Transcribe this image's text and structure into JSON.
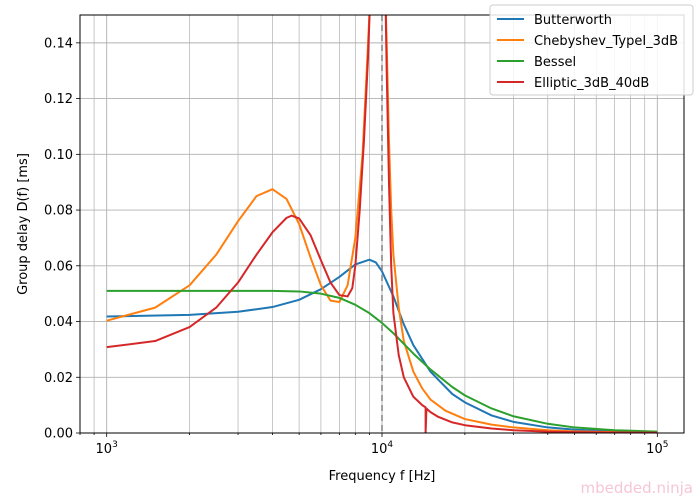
{
  "chart_data": {
    "type": "line",
    "xscale": "log",
    "xlim": [
      800,
      125000
    ],
    "ylim": [
      0.0,
      0.15
    ],
    "xlabel": "Frequency f [Hz]",
    "ylabel": "Group delay D(f) [ms]",
    "x_ticks": [
      {
        "value": 1000,
        "base": "10",
        "exp": "3"
      },
      {
        "value": 10000,
        "base": "10",
        "exp": "4"
      },
      {
        "value": 100000,
        "base": "10",
        "exp": "5"
      }
    ],
    "y_ticks": [
      "0.00",
      "0.02",
      "0.04",
      "0.06",
      "0.08",
      "0.10",
      "0.12",
      "0.14"
    ],
    "grid": true,
    "cutoff_line": {
      "x": 10000,
      "style": "dashed",
      "color": "#808080"
    },
    "legend_position": "top-right",
    "series": [
      {
        "name": "Butterworth",
        "color": "#1f77b4",
        "x": [
          1000,
          2000,
          3000,
          4000,
          5000,
          6000,
          7000,
          8000,
          9000,
          9500,
          10000,
          11000,
          12000,
          13000,
          15000,
          18000,
          20000,
          25000,
          30000,
          40000,
          50000,
          70000,
          100000
        ],
        "y": [
          0.0418,
          0.0424,
          0.0435,
          0.0452,
          0.0478,
          0.0516,
          0.056,
          0.0605,
          0.0622,
          0.0612,
          0.058,
          0.049,
          0.039,
          0.0315,
          0.022,
          0.014,
          0.011,
          0.0063,
          0.004,
          0.002,
          0.0012,
          0.0006,
          0.0003
        ]
      },
      {
        "name": "Chebyshev_TypeI_3dB",
        "color": "#ff7f0e",
        "x": [
          1000,
          1500,
          2000,
          2500,
          3000,
          3500,
          4000,
          4500,
          5000,
          5500,
          6000,
          6500,
          7000,
          7500,
          8000,
          8500,
          8800,
          9000,
          9050,
          10300,
          10400,
          10600,
          10800,
          11000,
          11500,
          12000,
          13000,
          14000,
          15000,
          17000,
          20000,
          25000,
          30000,
          40000,
          50000,
          70000,
          100000
        ],
        "y": [
          0.0403,
          0.045,
          0.053,
          0.064,
          0.076,
          0.085,
          0.0875,
          0.084,
          0.075,
          0.063,
          0.053,
          0.0475,
          0.047,
          0.053,
          0.07,
          0.1,
          0.13,
          0.15,
          0.155,
          0.155,
          0.14,
          0.105,
          0.08,
          0.064,
          0.045,
          0.033,
          0.022,
          0.016,
          0.012,
          0.008,
          0.005,
          0.003,
          0.002,
          0.001,
          0.0006,
          0.0003,
          0.0002
        ]
      },
      {
        "name": "Bessel",
        "color": "#2ca02c",
        "x": [
          1000,
          2000,
          3000,
          4000,
          5000,
          6000,
          7000,
          8000,
          9000,
          10000,
          11000,
          12000,
          13000,
          15000,
          18000,
          20000,
          25000,
          30000,
          40000,
          50000,
          70000,
          100000
        ],
        "y": [
          0.051,
          0.051,
          0.051,
          0.051,
          0.0508,
          0.05,
          0.0485,
          0.046,
          0.043,
          0.0395,
          0.0358,
          0.032,
          0.0285,
          0.0228,
          0.0165,
          0.0135,
          0.0088,
          0.006,
          0.0033,
          0.002,
          0.001,
          0.0005
        ]
      },
      {
        "name": "Elliptic_3dB_40dB",
        "color": "#d62728",
        "x": [
          1000,
          1500,
          2000,
          2500,
          3000,
          3500,
          4000,
          4500,
          4700,
          5000,
          5500,
          6000,
          6500,
          7000,
          7500,
          7800,
          8000,
          8300,
          8600,
          8900,
          9050,
          10300,
          10400,
          10600,
          10800,
          11000,
          11500,
          12000,
          13000,
          14000,
          14400,
          14400,
          14500,
          15000,
          16000,
          18000,
          20000,
          25000,
          30000,
          40000,
          50000,
          70000,
          100000
        ],
        "y": [
          0.0308,
          0.033,
          0.038,
          0.045,
          0.054,
          0.064,
          0.072,
          0.0772,
          0.078,
          0.077,
          0.071,
          0.062,
          0.054,
          0.0495,
          0.049,
          0.052,
          0.06,
          0.08,
          0.105,
          0.135,
          0.155,
          0.155,
          0.13,
          0.09,
          0.06,
          0.043,
          0.028,
          0.02,
          0.013,
          0.01,
          0.0092,
          0.0,
          0.0088,
          0.0075,
          0.0058,
          0.0038,
          0.0028,
          0.0016,
          0.001,
          0.0005,
          0.0003,
          0.0002,
          0.0001
        ]
      }
    ]
  },
  "watermark": "mbedded.ninja"
}
